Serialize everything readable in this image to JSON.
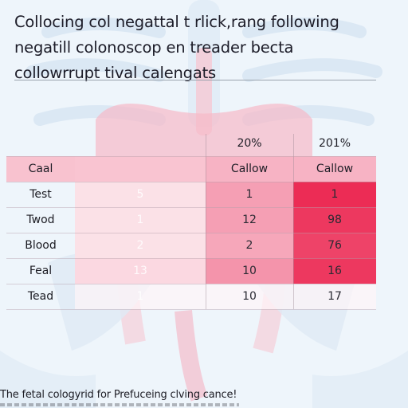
{
  "title": {
    "lines": [
      "Collocing col negattal t rlick,rang following",
      "negatill colonoscop en treader becta",
      "collowrrupt tival calengats"
    ]
  },
  "colors": {
    "background": "#eef5fb",
    "header_band": "#f6b4c4",
    "heat_low": "#fbe3ea",
    "heat_mid": "#f59fb4",
    "heat_high": "#ec2c55",
    "text_dark": "#1d1d25"
  },
  "chart_data": {
    "type": "table",
    "title": "Collocing col negattal t rlick,rang following negatill colonoscop en treader becta collowrrupt tival calengats",
    "column_groups": [
      "",
      "",
      "20%",
      "201%"
    ],
    "columns": [
      "Caal",
      "",
      "Callow",
      "Callow"
    ],
    "rows": [
      {
        "label": "Test",
        "values": [
          "5",
          "1",
          "1"
        ]
      },
      {
        "label": "Twod",
        "values": [
          "1",
          "12",
          "98"
        ]
      },
      {
        "label": "Blood",
        "values": [
          "2",
          "2",
          "76"
        ]
      },
      {
        "label": "Feal",
        "values": [
          "13",
          "10",
          "16"
        ]
      },
      {
        "label": "Tead",
        "values": [
          "1",
          "10",
          "17"
        ]
      }
    ],
    "heat_levels": [
      [
        0.1,
        0.5,
        1.0
      ],
      [
        0.1,
        0.5,
        0.95
      ],
      [
        0.1,
        0.45,
        0.9
      ],
      [
        0.15,
        0.55,
        0.95
      ],
      [
        0.05,
        0.05,
        0.05
      ]
    ]
  },
  "footer": {
    "caption": "The fetal cologyrid for Prefuceing clving cance!"
  }
}
